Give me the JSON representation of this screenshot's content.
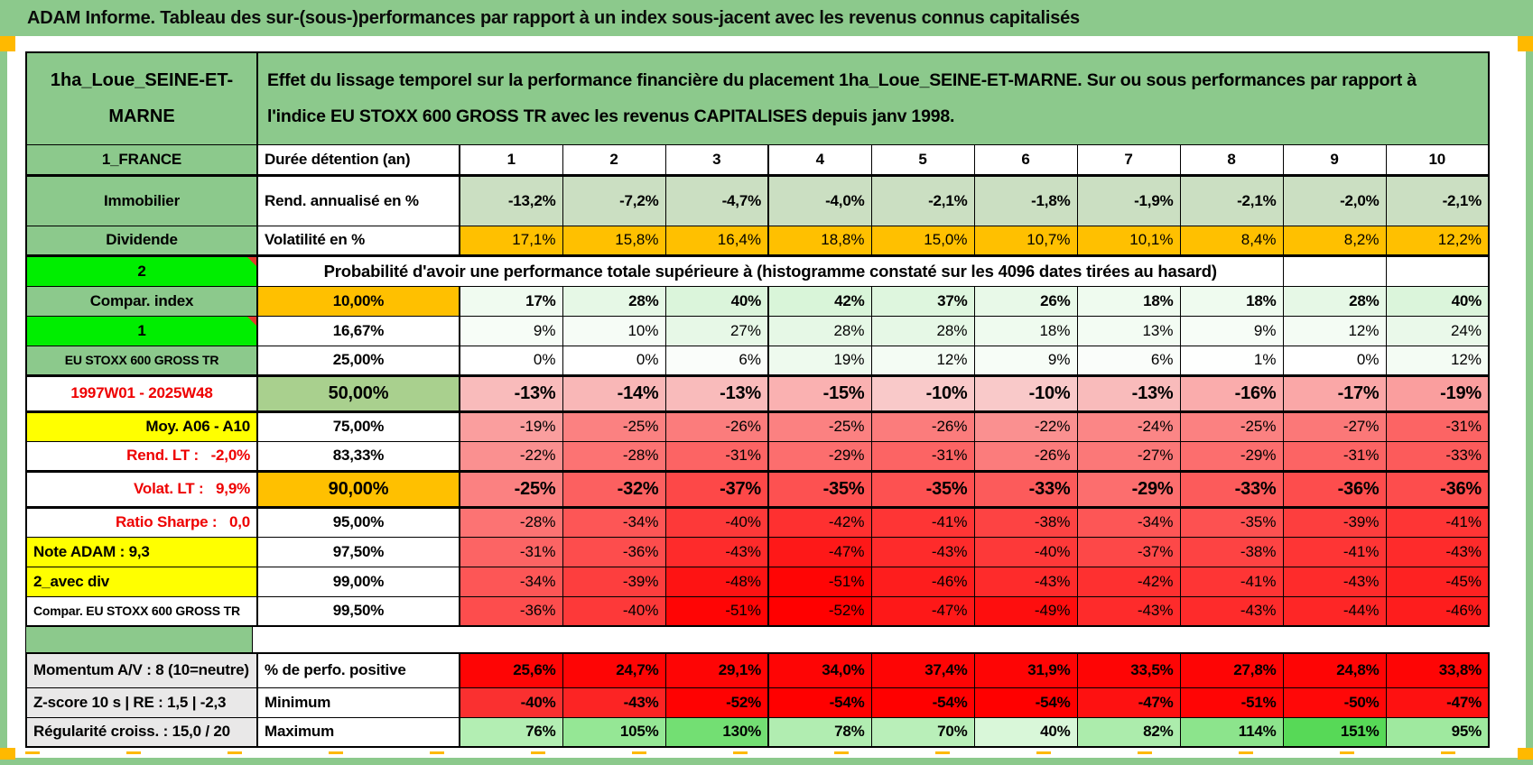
{
  "title": "ADAM Informe. Tableau des sur-(sous-)performances par rapport à un index sous-jacent avec les revenus connus capitalisés",
  "colors": {
    "frame_green": "#8CC98C",
    "cell_green": "#8CC98C",
    "bright_green": "#00EE00",
    "yellow": "#FFFF00",
    "orange": "#FFC000",
    "gray": "#E9E8E8",
    "sage": "#CBDFC2",
    "olive": "#A9D08E",
    "red_text": "#EE0000",
    "marker_orange": "#FFB900"
  },
  "table": {
    "asset": "1ha_Loue_SEINE-ET-MARNE",
    "description": "Effet du lissage temporel sur la performance financière du placement 1ha_Loue_SEINE-ET-MARNE. Sur ou sous performances par rapport à l'indice EU STOXX 600 GROSS TR avec les revenus CAPITALISES depuis janv 1998.",
    "columns": [
      "1",
      "2",
      "3",
      "4",
      "5",
      "6",
      "7",
      "8",
      "9",
      "10"
    ],
    "rows": [
      {
        "id": "duration",
        "a": {
          "t": "1_FRANCE",
          "bg": "cell_green"
        },
        "b": {
          "t": "Durée détention (an)",
          "align": "left"
        },
        "head": true,
        "vbold": true
      },
      {
        "id": "rend",
        "a": {
          "t": "Immobilier",
          "bg": "cell_green"
        },
        "b": {
          "t": "Rend. annualisé en %",
          "align": "left"
        },
        "vbold": true,
        "cells": [
          [
            "-13,2%",
            "#CBDFC2"
          ],
          [
            "-7,2%",
            "#CBDFC2"
          ],
          [
            "-4,7%",
            "#CBDFC2"
          ],
          [
            "-4,0%",
            "#CBDFC2"
          ],
          [
            "-2,1%",
            "#CBDFC2"
          ],
          [
            "-1,8%",
            "#CBDFC2"
          ],
          [
            "-1,9%",
            "#CBDFC2"
          ],
          [
            "-2,1%",
            "#CBDFC2"
          ],
          [
            "-2,0%",
            "#CBDFC2"
          ],
          [
            "-2,1%",
            "#CBDFC2"
          ]
        ]
      },
      {
        "id": "vol",
        "a": {
          "t": "Dividende",
          "bg": "cell_green"
        },
        "b": {
          "t": "Volatilité en %",
          "align": "left"
        },
        "cells": [
          [
            "17,1%",
            "#FFC000"
          ],
          [
            "15,8%",
            "#FFC000"
          ],
          [
            "16,4%",
            "#FFC000"
          ],
          [
            "18,8%",
            "#FFC000"
          ],
          [
            "15,0%",
            "#FFC000"
          ],
          [
            "10,7%",
            "#FFC000"
          ],
          [
            "10,1%",
            "#FFC000"
          ],
          [
            "8,4%",
            "#FFC000"
          ],
          [
            "8,2%",
            "#FFC000"
          ],
          [
            "12,2%",
            "#FFC000"
          ]
        ]
      },
      {
        "id": "prob",
        "a": {
          "t": "2",
          "bg": "bright_green",
          "tri": true
        },
        "merged": "Probabilité d'avoir une performance totale supérieure à (histogramme constaté sur les 4096 dates tirées au hasard)",
        "mergedSpan": 9,
        "emptyTail": 2
      },
      {
        "id": "p10",
        "a": {
          "t": "Compar. index",
          "bg": "cell_green"
        },
        "b": {
          "t": "10,00%",
          "bg": "orange"
        },
        "vbold": true,
        "cells": [
          [
            "17%",
            "#F0FBF0"
          ],
          [
            "28%",
            "#E6F8E6"
          ],
          [
            "40%",
            "#DBF5DB"
          ],
          [
            "42%",
            "#D9F5D9"
          ],
          [
            "37%",
            "#DEF6DE"
          ],
          [
            "26%",
            "#E8F9E8"
          ],
          [
            "18%",
            "#EFFBEF"
          ],
          [
            "18%",
            "#EFFBEF"
          ],
          [
            "28%",
            "#E6F8E6"
          ],
          [
            "40%",
            "#DBF5DB"
          ]
        ]
      },
      {
        "id": "p16",
        "a": {
          "t": "1",
          "bg": "bright_green",
          "tri": true
        },
        "b": {
          "t": "16,67%"
        },
        "cells": [
          [
            "9%",
            "#F7FDF7"
          ],
          [
            "10%",
            "#F6FCF6"
          ],
          [
            "27%",
            "#E7F8E7"
          ],
          [
            "28%",
            "#E6F8E6"
          ],
          [
            "28%",
            "#E6F8E6"
          ],
          [
            "18%",
            "#EFFBEF"
          ],
          [
            "13%",
            "#F3FCF3"
          ],
          [
            "9%",
            "#F7FDF7"
          ],
          [
            "12%",
            "#F4FCF4"
          ],
          [
            "24%",
            "#EAF9EA"
          ]
        ]
      },
      {
        "id": "p25",
        "a": {
          "t": "EU STOXX 600 GROSS TR",
          "bg": "cell_green",
          "small": true
        },
        "b": {
          "t": "25,00%"
        },
        "cells": [
          [
            "0%",
            "#FFFFFF"
          ],
          [
            "0%",
            "#FFFFFF"
          ],
          [
            "6%",
            "#FAFDFA"
          ],
          [
            "19%",
            "#EEFAEE"
          ],
          [
            "12%",
            "#F4FCF4"
          ],
          [
            "9%",
            "#F7FDF7"
          ],
          [
            "6%",
            "#FAFDFA"
          ],
          [
            "1%",
            "#FEFFFE"
          ],
          [
            "0%",
            "#FFFFFF"
          ],
          [
            "12%",
            "#F4FCF4"
          ]
        ]
      },
      {
        "id": "p50",
        "a": {
          "t": "1997W01 - 2025W48",
          "fg": "red_text"
        },
        "b": {
          "t": "50,00%",
          "bg": "olive",
          "em": true
        },
        "em": true,
        "vbold": true,
        "cells": [
          [
            "-13%",
            "#F9BBBB"
          ],
          [
            "-14%",
            "#F9B7B7"
          ],
          [
            "-13%",
            "#F9BBBB"
          ],
          [
            "-15%",
            "#FAB1B1"
          ],
          [
            "-10%",
            "#F9C9C9"
          ],
          [
            "-10%",
            "#F9C9C9"
          ],
          [
            "-13%",
            "#F9BBBB"
          ],
          [
            "-16%",
            "#FAACAC"
          ],
          [
            "-17%",
            "#FAA7A7"
          ],
          [
            "-19%",
            "#FA9E9E"
          ]
        ]
      },
      {
        "id": "p75",
        "a": {
          "t": "Moy. A06 - A10",
          "bg": "yellow",
          "align": "right"
        },
        "b": {
          "t": "75,00%"
        },
        "cells": [
          [
            "-19%",
            "#FA9E9E"
          ],
          [
            "-25%",
            "#FB8181"
          ],
          [
            "-26%",
            "#FB7C7C"
          ],
          [
            "-25%",
            "#FB8181"
          ],
          [
            "-26%",
            "#FB7C7C"
          ],
          [
            "-22%",
            "#FA9090"
          ],
          [
            "-24%",
            "#FB8686"
          ],
          [
            "-25%",
            "#FB8181"
          ],
          [
            "-27%",
            "#FB7878"
          ],
          [
            "-31%",
            "#FC6464"
          ]
        ]
      },
      {
        "id": "p83",
        "a": {
          "t": "Rend. LT :   -2,0%",
          "fg": "red_text",
          "align": "right"
        },
        "b": {
          "t": "83,33%"
        },
        "cells": [
          [
            "-22%",
            "#FA9090"
          ],
          [
            "-28%",
            "#FC7373"
          ],
          [
            "-31%",
            "#FC6464"
          ],
          [
            "-29%",
            "#FC6E6E"
          ],
          [
            "-31%",
            "#FC6464"
          ],
          [
            "-26%",
            "#FB7C7C"
          ],
          [
            "-27%",
            "#FB7878"
          ],
          [
            "-29%",
            "#FC6E6E"
          ],
          [
            "-31%",
            "#FC6464"
          ],
          [
            "-33%",
            "#FC5B5B"
          ]
        ]
      },
      {
        "id": "p90",
        "a": {
          "t": "Volat. LT :   9,9%",
          "fg": "red_text",
          "align": "right"
        },
        "b": {
          "t": "90,00%",
          "bg": "orange",
          "em": true
        },
        "em": true,
        "vbold": true,
        "cells": [
          [
            "-25%",
            "#FB8181"
          ],
          [
            "-32%",
            "#FC6060"
          ],
          [
            "-37%",
            "#FD4848"
          ],
          [
            "-35%",
            "#FD5151"
          ],
          [
            "-35%",
            "#FD5151"
          ],
          [
            "-33%",
            "#FC5B5B"
          ],
          [
            "-29%",
            "#FC6E6E"
          ],
          [
            "-33%",
            "#FC5B5B"
          ],
          [
            "-36%",
            "#FD4D4D"
          ],
          [
            "-36%",
            "#FD4D4D"
          ]
        ]
      },
      {
        "id": "p95",
        "a": {
          "t": "Ratio Sharpe :   0,0",
          "fg": "red_text",
          "align": "right"
        },
        "b": {
          "t": "95,00%"
        },
        "cells": [
          [
            "-28%",
            "#FC7373"
          ],
          [
            "-34%",
            "#FD5656"
          ],
          [
            "-40%",
            "#FD3939"
          ],
          [
            "-42%",
            "#FE3030"
          ],
          [
            "-41%",
            "#FE3535"
          ],
          [
            "-38%",
            "#FD4343"
          ],
          [
            "-34%",
            "#FD5656"
          ],
          [
            "-35%",
            "#FD5151"
          ],
          [
            "-39%",
            "#FD3E3E"
          ],
          [
            "-41%",
            "#FE3535"
          ]
        ]
      },
      {
        "id": "p975",
        "a": {
          "t": "Note ADAM : 9,3",
          "bg": "yellow",
          "align": "left"
        },
        "b": {
          "t": "97,50%"
        },
        "cells": [
          [
            "-31%",
            "#FC6464"
          ],
          [
            "-36%",
            "#FD4D4D"
          ],
          [
            "-43%",
            "#FE2B2B"
          ],
          [
            "-47%",
            "#FE1818"
          ],
          [
            "-43%",
            "#FE2B2B"
          ],
          [
            "-40%",
            "#FD3939"
          ],
          [
            "-37%",
            "#FD4848"
          ],
          [
            "-38%",
            "#FD4343"
          ],
          [
            "-41%",
            "#FE3535"
          ],
          [
            "-43%",
            "#FE2B2B"
          ]
        ]
      },
      {
        "id": "p99",
        "a": {
          "t": "2_avec div",
          "bg": "yellow",
          "align": "left"
        },
        "b": {
          "t": "99,00%"
        },
        "cells": [
          [
            "-34%",
            "#FD5656"
          ],
          [
            "-39%",
            "#FD3E3E"
          ],
          [
            "-48%",
            "#FE1313"
          ],
          [
            "-51%",
            "#FF0505"
          ],
          [
            "-46%",
            "#FE1D1D"
          ],
          [
            "-43%",
            "#FE2B2B"
          ],
          [
            "-42%",
            "#FE3030"
          ],
          [
            "-41%",
            "#FE3535"
          ],
          [
            "-43%",
            "#FE2B2B"
          ],
          [
            "-45%",
            "#FE2222"
          ]
        ]
      },
      {
        "id": "p995",
        "a": {
          "t": "Compar. EU STOXX 600 GROSS TR",
          "small": true,
          "align": "left"
        },
        "b": {
          "t": "99,50%"
        },
        "cells": [
          [
            "-36%",
            "#FD4D4D"
          ],
          [
            "-40%",
            "#FD3939"
          ],
          [
            "-51%",
            "#FF0505"
          ],
          [
            "-52%",
            "#FF0000"
          ],
          [
            "-47%",
            "#FE1818"
          ],
          [
            "-49%",
            "#FE0E0E"
          ],
          [
            "-43%",
            "#FE2B2B"
          ],
          [
            "-43%",
            "#FE2B2B"
          ],
          [
            "-44%",
            "#FE2626"
          ],
          [
            "-46%",
            "#FE1D1D"
          ]
        ]
      }
    ],
    "bottom_rows": [
      {
        "id": "perf",
        "a": {
          "t": "Momentum A/V : 8 (10=neutre)",
          "bg": "gray",
          "align": "left"
        },
        "b": {
          "t": "% de perfo. positive",
          "align": "left"
        },
        "vbold": true,
        "cells": [
          [
            "25,6%",
            "#FE0505"
          ],
          [
            "24,7%",
            "#FE0505"
          ],
          [
            "29,1%",
            "#FE0505"
          ],
          [
            "34,0%",
            "#FE0505"
          ],
          [
            "37,4%",
            "#FE0505"
          ],
          [
            "31,9%",
            "#FE0505"
          ],
          [
            "33,5%",
            "#FE0505"
          ],
          [
            "27,8%",
            "#FE0505"
          ],
          [
            "24,8%",
            "#FE0505"
          ],
          [
            "33,8%",
            "#FE0505"
          ]
        ]
      },
      {
        "id": "min",
        "a": {
          "t": "Z-score 10 s | RE : 1,5 | -2,3",
          "bg": "gray",
          "align": "left"
        },
        "b": {
          "t": "Minimum",
          "align": "left"
        },
        "vbold": true,
        "cells": [
          [
            "-40%",
            "#FA3030"
          ],
          [
            "-43%",
            "#FC2424"
          ],
          [
            "-52%",
            "#FF0202"
          ],
          [
            "-54%",
            "#FF0000"
          ],
          [
            "-54%",
            "#FF0000"
          ],
          [
            "-54%",
            "#FF0000"
          ],
          [
            "-47%",
            "#FE1111"
          ],
          [
            "-51%",
            "#FF0505"
          ],
          [
            "-50%",
            "#FF0808"
          ],
          [
            "-47%",
            "#FE1111"
          ]
        ]
      },
      {
        "id": "max",
        "a": {
          "t": "Régularité croiss. : 15,0 / 20",
          "bg": "gray",
          "align": "left"
        },
        "b": {
          "t": "Maximum",
          "align": "left"
        },
        "vbold": true,
        "cells": [
          [
            "76%",
            "#B3EEB3"
          ],
          [
            "105%",
            "#95E795"
          ],
          [
            "130%",
            "#73DF73"
          ],
          [
            "78%",
            "#B1EDB1"
          ],
          [
            "70%",
            "#B9EFB9"
          ],
          [
            "40%",
            "#D9F7D9"
          ],
          [
            "82%",
            "#ACECAC"
          ],
          [
            "114%",
            "#8CE48C"
          ],
          [
            "151%",
            "#57D957"
          ],
          [
            "95%",
            "#9FE99F"
          ]
        ]
      }
    ]
  }
}
